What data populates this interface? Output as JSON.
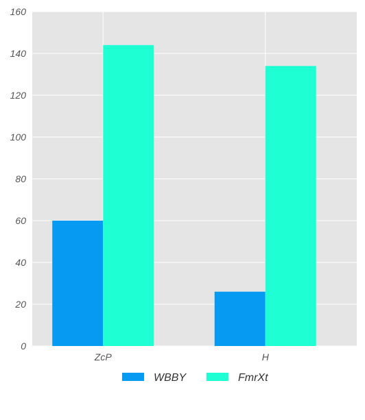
{
  "chart_data": {
    "type": "bar",
    "categories": [
      "ZcP",
      "H"
    ],
    "series": [
      {
        "name": "WBBY",
        "values": [
          60,
          26
        ],
        "color": "#069AF3"
      },
      {
        "name": "FmrXt",
        "values": [
          144,
          134
        ],
        "color": "#1FFFD4"
      }
    ],
    "title": "",
    "xlabel": "",
    "ylabel": "",
    "ylim": [
      0,
      160
    ],
    "yticks": [
      0,
      20,
      40,
      60,
      80,
      100,
      120,
      140,
      160
    ],
    "grid": true,
    "legend_position": "bottom-center",
    "background_color": "#E5E5E5",
    "grid_color": "#FFFFFF"
  }
}
